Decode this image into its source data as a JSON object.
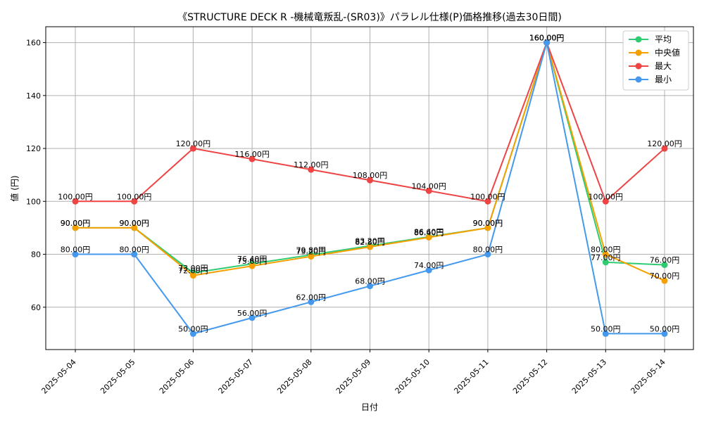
{
  "chart_data": {
    "type": "line",
    "title": "《STRUCTURE DECK R -機械竜叛乱-(SR03)》パラレル仕様(P)価格推移(過去30日間)",
    "xlabel": "日付",
    "ylabel": "値 (円)",
    "categories": [
      "2025-05-04",
      "2025-05-05",
      "2025-05-06",
      "2025-05-07",
      "2025-05-08",
      "2025-05-09",
      "2025-05-10",
      "2025-05-11",
      "2025-05-12",
      "2025-05-13",
      "2025-05-14"
    ],
    "ylim": [
      44,
      166
    ],
    "yticks": [
      60,
      80,
      100,
      120,
      140,
      160
    ],
    "grid": true,
    "legend_position": "top-right",
    "value_suffix": "円",
    "series": [
      {
        "name": "平均",
        "color": "#2ecc71",
        "values": [
          90,
          90,
          73,
          76.4,
          79.8,
          83.2,
          86.6,
          90,
          160,
          77,
          76
        ]
      },
      {
        "name": "中央値",
        "color": "#f5a000",
        "values": [
          90,
          90,
          72,
          75.6,
          79.2,
          82.8,
          86.4,
          90,
          160,
          80,
          70
        ]
      },
      {
        "name": "最大",
        "color": "#ee4444",
        "values": [
          100,
          100,
          120,
          116,
          112,
          108,
          104,
          100,
          160,
          100,
          120
        ]
      },
      {
        "name": "最小",
        "color": "#4499ee",
        "values": [
          80,
          80,
          50,
          56,
          62,
          68,
          74,
          80,
          160,
          50,
          50
        ]
      }
    ]
  }
}
